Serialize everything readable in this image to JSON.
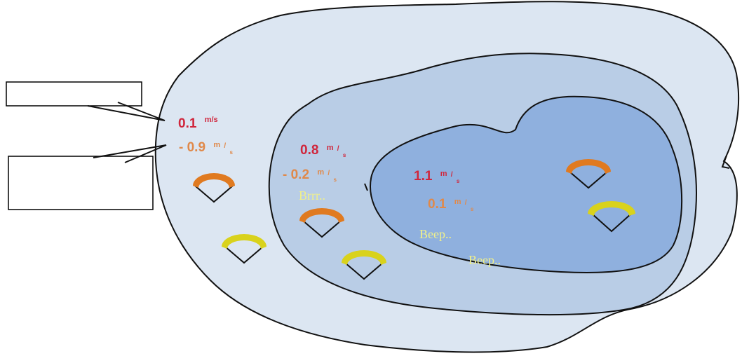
{
  "colors": {
    "outer_zone": "#dce6f2",
    "middle_zone": "#b9cde6",
    "inner_zone": "#8fb0de",
    "speed_label": "#d0263c",
    "offset_label": "#e0894a",
    "sound_label": "#f0f08a",
    "sensor_orange": "#e07a20",
    "sensor_yellow": "#d9d21c"
  },
  "zones": {
    "outer": {
      "speed": "0.1",
      "speed_unit": "m/s",
      "offset": "- 0.9",
      "offset_unit_num": "m",
      "offset_unit_den": "s"
    },
    "middle": {
      "speed": "0.8",
      "speed_unit_num": "m",
      "speed_unit_den": "s",
      "offset": "- 0.2",
      "offset_unit_num": "m",
      "offset_unit_den": "s",
      "sound": "Brrr.."
    },
    "inner": {
      "speed": "1.1",
      "speed_unit_num": "m",
      "speed_unit_den": "s",
      "offset": "0.1",
      "offset_unit_num": "m",
      "offset_unit_den": "s",
      "sound_1": "Beep..",
      "sound_2": "Beep.."
    }
  },
  "callouts": {
    "top_box": "",
    "bottom_box": ""
  },
  "sensors": [
    {
      "zone": "outer",
      "color": "orange-icon"
    },
    {
      "zone": "outer",
      "color": "yellow-icon"
    },
    {
      "zone": "middle",
      "color": "orange-icon"
    },
    {
      "zone": "middle",
      "color": "yellow-icon"
    },
    {
      "zone": "inner",
      "color": "orange-icon"
    },
    {
      "zone": "inner",
      "color": "yellow-icon"
    }
  ]
}
